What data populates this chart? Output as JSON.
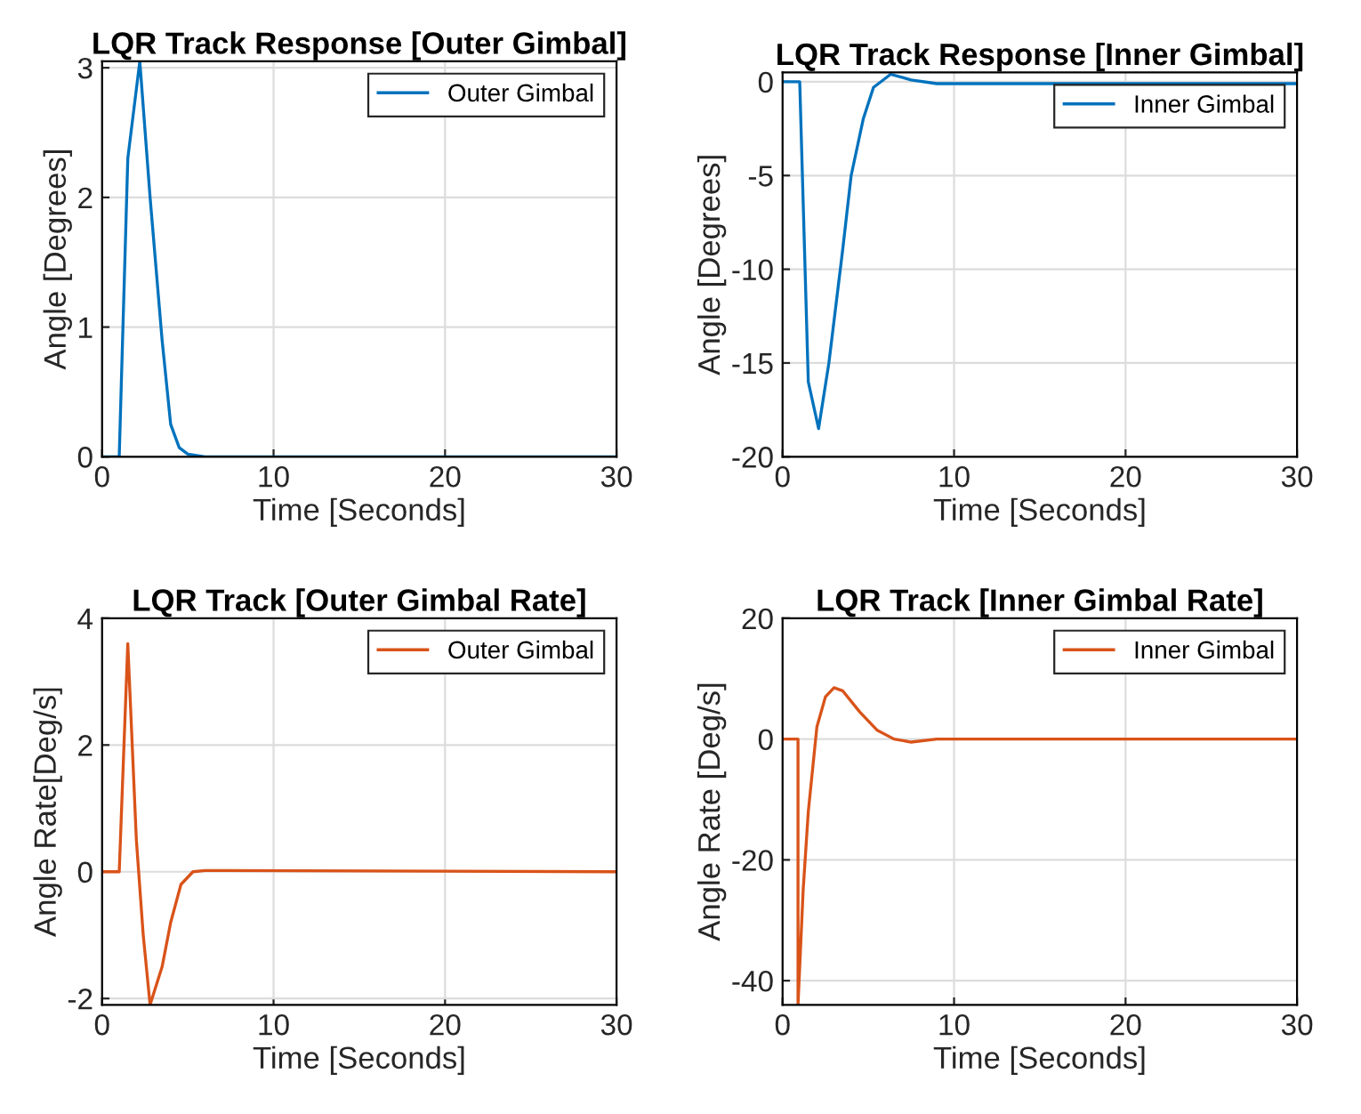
{
  "chart_data": [
    {
      "type": "line",
      "title": "LQR Track Response [Outer Gimbal]",
      "xlabel": "Time [Seconds]",
      "ylabel": "Angle [Degrees]",
      "xlim": [
        0,
        30
      ],
      "xticks": [
        0,
        10,
        20,
        30
      ],
      "ylim": [
        0,
        3.05
      ],
      "yticks": [
        0,
        1,
        2,
        3
      ],
      "grid": true,
      "legend": "top right",
      "series": [
        {
          "name": "Outer Gimbal",
          "color": "#0072bd",
          "x": [
            0,
            1,
            1.5,
            2.2,
            2.8,
            3.5,
            4,
            4.5,
            5,
            6,
            30
          ],
          "values": [
            0,
            0,
            2.3,
            3.05,
            2.0,
            0.9,
            0.25,
            0.07,
            0.02,
            0,
            0
          ]
        }
      ]
    },
    {
      "type": "line",
      "title": "LQR Track Response [Inner Gimbal]",
      "xlabel": "Time [Seconds]",
      "ylabel": "Angle [Degrees]",
      "xlim": [
        0,
        30
      ],
      "xticks": [
        0,
        10,
        20,
        30
      ],
      "ylim": [
        -20,
        0.5
      ],
      "yticks": [
        -20,
        -15,
        -10,
        -5,
        0
      ],
      "grid": true,
      "legend": "top right",
      "series": [
        {
          "name": "Inner Gimbal",
          "color": "#0072bd",
          "x": [
            0,
            1,
            1.5,
            2.1,
            2.7,
            3.5,
            4,
            4.7,
            5.3,
            6.3,
            7.5,
            9,
            10,
            30
          ],
          "values": [
            0,
            0,
            -16,
            -18.5,
            -15,
            -9,
            -5,
            -2,
            -0.3,
            0.4,
            0.1,
            -0.1,
            -0.1,
            -0.1
          ]
        }
      ]
    },
    {
      "type": "line",
      "title": "LQR Track [Outer Gimbal Rate]",
      "xlabel": "Time [Seconds]",
      "ylabel": "Angle Rate[Deg/s]",
      "xlim": [
        0,
        30
      ],
      "xticks": [
        0,
        10,
        20,
        30
      ],
      "ylim": [
        -2.1,
        4
      ],
      "yticks": [
        -2,
        0,
        2,
        4
      ],
      "grid": true,
      "legend": "top right",
      "series": [
        {
          "name": "Outer Gimbal",
          "color": "#d95319",
          "x": [
            0,
            1,
            1.5,
            2,
            2.4,
            2.8,
            3.5,
            4,
            4.6,
            5.3,
            6,
            30
          ],
          "values": [
            0,
            0,
            3.6,
            0.5,
            -1,
            -2.1,
            -1.5,
            -0.8,
            -0.2,
            0,
            0.02,
            0
          ]
        }
      ]
    },
    {
      "type": "line",
      "title": "LQR Track [Inner Gimbal Rate]",
      "xlabel": "Time [Seconds]",
      "ylabel": "Angle Rate [Deg/s]",
      "xlim": [
        0,
        30
      ],
      "xticks": [
        0,
        10,
        20,
        30
      ],
      "ylim": [
        -44,
        20
      ],
      "yticks": [
        -40,
        -20,
        0,
        20
      ],
      "grid": true,
      "legend": "top right",
      "series": [
        {
          "name": "Inner Gimbal",
          "color": "#d95319",
          "x": [
            0,
            0.9,
            0.9,
            1.2,
            1.5,
            2,
            2.5,
            3,
            3.5,
            4.5,
            5.5,
            6.5,
            7.5,
            9,
            30
          ],
          "values": [
            0,
            0,
            -44,
            -25,
            -12,
            2,
            7,
            8.5,
            8,
            4.5,
            1.5,
            0,
            -0.5,
            0,
            0
          ]
        }
      ]
    }
  ]
}
